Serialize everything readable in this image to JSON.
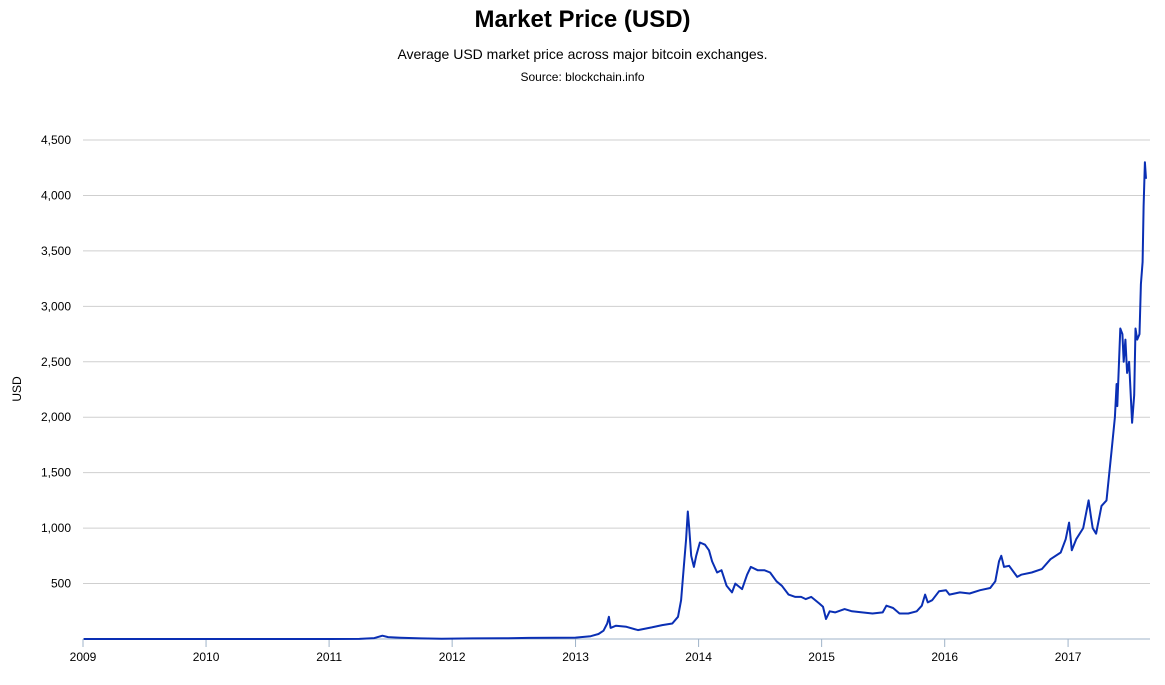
{
  "chart_data": {
    "type": "line",
    "title": "Market Price (USD)",
    "subtitle": "Average USD market price across major bitcoin exchanges.",
    "source": "Source: blockchain.info",
    "xlabel": "",
    "ylabel": "USD",
    "ylim": [
      0,
      4500
    ],
    "xlim": [
      "2009-01-01",
      "2017-09-01"
    ],
    "y_ticks": [
      "500",
      "1,000",
      "1,500",
      "2,000",
      "2,500",
      "3,000",
      "3,500",
      "4,000",
      "4,500"
    ],
    "x_ticks": [
      "2009",
      "2010",
      "2011",
      "2012",
      "2013",
      "2014",
      "2015",
      "2016",
      "2017"
    ],
    "grid": true,
    "line_color": "#0a2fb4",
    "series": [
      {
        "x": [
          "2009-01-03",
          "2010-01-01",
          "2010-07-01",
          "2011-01-01",
          "2011-04-01",
          "2011-05-15",
          "2011-06-08",
          "2011-06-25",
          "2011-08-01",
          "2011-10-01",
          "2011-12-01",
          "2012-03-01",
          "2012-06-01",
          "2012-08-15",
          "2012-11-01",
          "2013-01-01",
          "2013-02-15",
          "2013-03-10",
          "2013-03-25",
          "2013-04-05",
          "2013-04-10",
          "2013-04-15",
          "2013-05-01",
          "2013-06-01",
          "2013-07-05",
          "2013-08-15",
          "2013-09-15",
          "2013-10-15",
          "2013-11-01",
          "2013-11-10",
          "2013-11-18",
          "2013-11-25",
          "2013-11-30",
          "2013-12-04",
          "2013-12-10",
          "2013-12-18",
          "2013-12-25",
          "2014-01-05",
          "2014-01-20",
          "2014-02-01",
          "2014-02-10",
          "2014-02-25",
          "2014-03-10",
          "2014-03-25",
          "2014-04-10",
          "2014-04-20",
          "2014-05-10",
          "2014-05-25",
          "2014-06-05",
          "2014-06-25",
          "2014-07-15",
          "2014-08-01",
          "2014-08-20",
          "2014-09-05",
          "2014-09-25",
          "2014-10-15",
          "2014-11-01",
          "2014-11-15",
          "2014-12-01",
          "2014-12-25",
          "2015-01-05",
          "2015-01-14",
          "2015-01-25",
          "2015-02-10",
          "2015-03-10",
          "2015-04-01",
          "2015-05-01",
          "2015-06-01",
          "2015-07-01",
          "2015-07-12",
          "2015-08-01",
          "2015-08-20",
          "2015-09-15",
          "2015-10-10",
          "2015-10-25",
          "2015-11-04",
          "2015-11-12",
          "2015-11-25",
          "2015-12-15",
          "2016-01-05",
          "2016-01-15",
          "2016-02-15",
          "2016-03-15",
          "2016-04-15",
          "2016-05-15",
          "2016-05-30",
          "2016-06-10",
          "2016-06-17",
          "2016-06-25",
          "2016-07-10",
          "2016-08-03",
          "2016-08-15",
          "2016-09-15",
          "2016-10-15",
          "2016-11-10",
          "2016-12-10",
          "2016-12-25",
          "2017-01-04",
          "2017-01-12",
          "2017-01-25",
          "2017-02-15",
          "2017-03-03",
          "2017-03-10",
          "2017-03-15",
          "2017-03-25",
          "2017-04-10",
          "2017-04-25",
          "2017-05-10",
          "2017-05-20",
          "2017-05-25",
          "2017-05-27",
          "2017-06-05",
          "2017-06-11",
          "2017-06-15",
          "2017-06-20",
          "2017-06-25",
          "2017-07-01",
          "2017-07-10",
          "2017-07-16",
          "2017-07-20",
          "2017-07-25",
          "2017-08-01",
          "2017-08-05",
          "2017-08-10",
          "2017-08-13",
          "2017-08-17",
          "2017-08-20"
        ],
        "values": [
          0,
          0,
          0,
          0,
          1,
          8,
          30,
          17,
          12,
          5,
          3,
          5,
          6,
          10,
          11,
          13,
          25,
          45,
          75,
          140,
          200,
          100,
          120,
          110,
          80,
          105,
          125,
          140,
          200,
          350,
          650,
          900,
          1150,
          1000,
          750,
          650,
          750,
          870,
          850,
          800,
          700,
          600,
          620,
          480,
          420,
          500,
          450,
          580,
          650,
          620,
          620,
          600,
          520,
          480,
          400,
          380,
          380,
          360,
          380,
          320,
          290,
          180,
          250,
          240,
          270,
          250,
          240,
          230,
          240,
          300,
          280,
          230,
          230,
          250,
          300,
          400,
          330,
          350,
          430,
          440,
          400,
          420,
          410,
          440,
          460,
          520,
          700,
          750,
          650,
          660,
          560,
          580,
          600,
          630,
          720,
          780,
          900,
          1050,
          800,
          900,
          1000,
          1250,
          1100,
          1000,
          950,
          1200,
          1250,
          1700,
          2000,
          2300,
          2100,
          2800,
          2750,
          2500,
          2700,
          2400,
          2500,
          1950,
          2200,
          2800,
          2700,
          2750,
          3200,
          3400,
          3900,
          4300,
          4150
        ]
      }
    ]
  }
}
